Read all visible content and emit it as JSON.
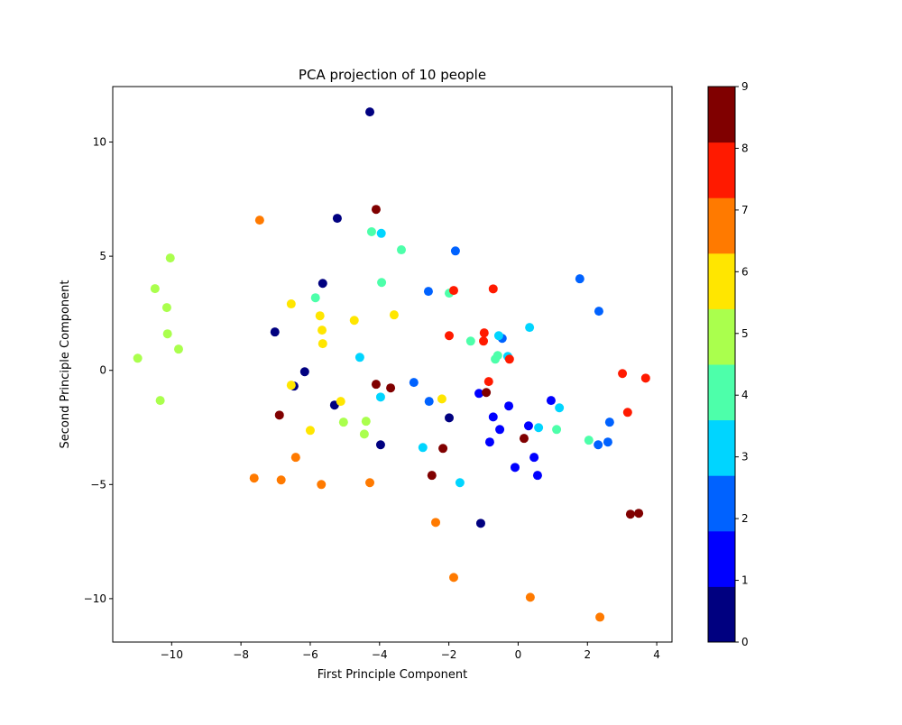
{
  "chart_data": {
    "type": "scatter",
    "title": "PCA projection of 10 people",
    "xlabel": "First Principle Component",
    "ylabel": "Second Principle Component",
    "xlim": [
      -11.7,
      4.44
    ],
    "ylim": [
      -11.9,
      12.43
    ],
    "xticks": [
      -10,
      -8,
      -6,
      -4,
      -2,
      0,
      2,
      4
    ],
    "yticks": [
      -10,
      -5,
      0,
      5,
      10
    ],
    "grid": false,
    "colormap": "jet",
    "colorbar": {
      "ticks": [
        0,
        1,
        2,
        3,
        4,
        5,
        6,
        7,
        8,
        9
      ],
      "range": [
        0,
        9
      ],
      "bins": 10
    },
    "class_colors": [
      "#000080",
      "#0000ff",
      "#0062ff",
      "#00d5ff",
      "#4dffaa",
      "#aaff4d",
      "#ffe600",
      "#ff7a00",
      "#ff1a00",
      "#800000"
    ],
    "points": [
      {
        "x": -4.28,
        "y": 11.32,
        "c": 0
      },
      {
        "x": -5.22,
        "y": 6.66,
        "c": 0
      },
      {
        "x": -5.64,
        "y": 3.81,
        "c": 0
      },
      {
        "x": -7.02,
        "y": 1.68,
        "c": 0
      },
      {
        "x": -6.16,
        "y": -0.06,
        "c": 0
      },
      {
        "x": -6.47,
        "y": -0.69,
        "c": 0
      },
      {
        "x": -5.3,
        "y": -1.52,
        "c": 0
      },
      {
        "x": -1.99,
        "y": -2.08,
        "c": 0
      },
      {
        "x": -3.97,
        "y": -3.26,
        "c": 0
      },
      {
        "x": -1.08,
        "y": -6.7,
        "c": 0
      },
      {
        "x": -1.13,
        "y": -1.01,
        "c": 1
      },
      {
        "x": -0.27,
        "y": -1.56,
        "c": 1
      },
      {
        "x": -0.72,
        "y": -2.04,
        "c": 1
      },
      {
        "x": -0.53,
        "y": -2.59,
        "c": 1
      },
      {
        "x": -0.82,
        "y": -3.14,
        "c": 1
      },
      {
        "x": 0.3,
        "y": -2.43,
        "c": 1
      },
      {
        "x": 0.95,
        "y": -1.32,
        "c": 1
      },
      {
        "x": 0.46,
        "y": -3.81,
        "c": 1
      },
      {
        "x": -0.09,
        "y": -4.25,
        "c": 1
      },
      {
        "x": 0.56,
        "y": -4.6,
        "c": 1
      },
      {
        "x": -1.81,
        "y": 5.23,
        "c": 2
      },
      {
        "x": -2.59,
        "y": 3.46,
        "c": 2
      },
      {
        "x": 2.33,
        "y": 2.59,
        "c": 2
      },
      {
        "x": 1.78,
        "y": 4.01,
        "c": 2
      },
      {
        "x": -0.46,
        "y": 1.4,
        "c": 2
      },
      {
        "x": -3.01,
        "y": -0.53,
        "c": 2
      },
      {
        "x": -2.57,
        "y": -1.36,
        "c": 2
      },
      {
        "x": 2.64,
        "y": -2.27,
        "c": 2
      },
      {
        "x": 2.31,
        "y": -3.26,
        "c": 2
      },
      {
        "x": 2.59,
        "y": -3.14,
        "c": 2
      },
      {
        "x": -3.95,
        "y": 6.0,
        "c": 3
      },
      {
        "x": -4.57,
        "y": 0.57,
        "c": 3
      },
      {
        "x": -3.97,
        "y": -1.17,
        "c": 3
      },
      {
        "x": 0.33,
        "y": 1.88,
        "c": 3
      },
      {
        "x": -0.56,
        "y": 1.52,
        "c": 3
      },
      {
        "x": -0.3,
        "y": 0.61,
        "c": 3
      },
      {
        "x": -2.75,
        "y": -3.38,
        "c": 3
      },
      {
        "x": -1.68,
        "y": -4.92,
        "c": 3
      },
      {
        "x": 0.59,
        "y": -2.51,
        "c": 3
      },
      {
        "x": 1.19,
        "y": -1.64,
        "c": 3
      },
      {
        "x": -4.23,
        "y": 6.07,
        "c": 4
      },
      {
        "x": -3.37,
        "y": 5.28,
        "c": 4
      },
      {
        "x": -3.94,
        "y": 3.85,
        "c": 4
      },
      {
        "x": -5.85,
        "y": 3.18,
        "c": 4
      },
      {
        "x": -1.99,
        "y": 3.38,
        "c": 4
      },
      {
        "x": -1.37,
        "y": 1.28,
        "c": 4
      },
      {
        "x": -0.66,
        "y": 0.49,
        "c": 4
      },
      {
        "x": -0.59,
        "y": 0.65,
        "c": 4
      },
      {
        "x": 1.11,
        "y": -2.59,
        "c": 4
      },
      {
        "x": 2.04,
        "y": -3.06,
        "c": 4
      },
      {
        "x": -10.04,
        "y": 4.92,
        "c": 5
      },
      {
        "x": -10.48,
        "y": 3.58,
        "c": 5
      },
      {
        "x": -10.14,
        "y": 2.75,
        "c": 5
      },
      {
        "x": -10.12,
        "y": 1.6,
        "c": 5
      },
      {
        "x": -9.8,
        "y": 0.93,
        "c": 5
      },
      {
        "x": -10.98,
        "y": 0.53,
        "c": 5
      },
      {
        "x": -10.33,
        "y": -1.32,
        "c": 5
      },
      {
        "x": -5.04,
        "y": -2.27,
        "c": 5
      },
      {
        "x": -4.39,
        "y": -2.23,
        "c": 5
      },
      {
        "x": -4.44,
        "y": -2.79,
        "c": 5
      },
      {
        "x": -6.55,
        "y": 2.91,
        "c": 6
      },
      {
        "x": -5.72,
        "y": 2.39,
        "c": 6
      },
      {
        "x": -5.66,
        "y": 1.76,
        "c": 6
      },
      {
        "x": -5.64,
        "y": 1.17,
        "c": 6
      },
      {
        "x": -4.73,
        "y": 2.19,
        "c": 6
      },
      {
        "x": -3.58,
        "y": 2.43,
        "c": 6
      },
      {
        "x": -6.55,
        "y": -0.65,
        "c": 6
      },
      {
        "x": -5.12,
        "y": -1.36,
        "c": 6
      },
      {
        "x": -6.0,
        "y": -2.63,
        "c": 6
      },
      {
        "x": -2.2,
        "y": -1.25,
        "c": 6
      },
      {
        "x": -7.46,
        "y": 6.58,
        "c": 7
      },
      {
        "x": -6.42,
        "y": -3.81,
        "c": 7
      },
      {
        "x": -7.62,
        "y": -4.72,
        "c": 7
      },
      {
        "x": -6.84,
        "y": -4.8,
        "c": 7
      },
      {
        "x": -5.68,
        "y": -5.0,
        "c": 7
      },
      {
        "x": -4.28,
        "y": -4.92,
        "c": 7
      },
      {
        "x": -2.38,
        "y": -6.66,
        "c": 7
      },
      {
        "x": -1.86,
        "y": -9.07,
        "c": 7
      },
      {
        "x": 0.35,
        "y": -9.94,
        "c": 7
      },
      {
        "x": 2.36,
        "y": -10.81,
        "c": 7
      },
      {
        "x": -1.86,
        "y": 3.5,
        "c": 8
      },
      {
        "x": -0.72,
        "y": 3.57,
        "c": 8
      },
      {
        "x": -1.99,
        "y": 1.52,
        "c": 8
      },
      {
        "x": -0.98,
        "y": 1.64,
        "c": 8
      },
      {
        "x": -1.0,
        "y": 1.28,
        "c": 8
      },
      {
        "x": -0.25,
        "y": 0.49,
        "c": 8
      },
      {
        "x": -0.85,
        "y": -0.49,
        "c": 8
      },
      {
        "x": 3.01,
        "y": -0.14,
        "c": 8
      },
      {
        "x": 3.68,
        "y": -0.34,
        "c": 8
      },
      {
        "x": 3.16,
        "y": -1.84,
        "c": 8
      },
      {
        "x": -4.1,
        "y": 7.05,
        "c": 9
      },
      {
        "x": -6.89,
        "y": -1.96,
        "c": 9
      },
      {
        "x": -4.1,
        "y": -0.61,
        "c": 9
      },
      {
        "x": -3.68,
        "y": -0.77,
        "c": 9
      },
      {
        "x": -0.92,
        "y": -0.97,
        "c": 9
      },
      {
        "x": 0.17,
        "y": -2.98,
        "c": 9
      },
      {
        "x": -2.17,
        "y": -3.42,
        "c": 9
      },
      {
        "x": -2.49,
        "y": -4.6,
        "c": 9
      },
      {
        "x": 3.24,
        "y": -6.3,
        "c": 9
      },
      {
        "x": 3.48,
        "y": -6.26,
        "c": 9
      }
    ]
  }
}
